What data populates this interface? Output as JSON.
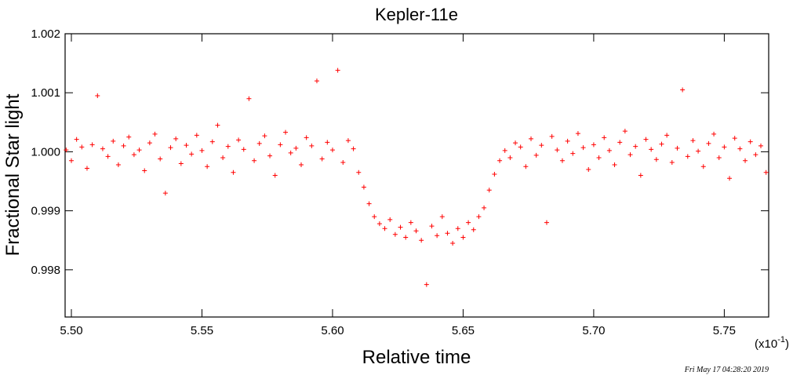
{
  "chart_data": {
    "type": "scatter",
    "title": "Kepler-11e",
    "x_label": "Relative time",
    "y_label": "Fractional Star light",
    "x_multiplier": {
      "base": "(x10",
      "exponent": "-1",
      "close": ")"
    },
    "timestamp": "Fri May 17 04:28:20 2019",
    "marker": "+",
    "xlim": [
      5.4976,
      5.767
    ],
    "ylim": [
      0.9972,
      1.002
    ],
    "xticks": [
      {
        "value": 5.5,
        "label": "5.50"
      },
      {
        "value": 5.55,
        "label": "5.55"
      },
      {
        "value": 5.6,
        "label": "5.60"
      },
      {
        "value": 5.65,
        "label": "5.65"
      },
      {
        "value": 5.7,
        "label": "5.70"
      },
      {
        "value": 5.75,
        "label": "5.75"
      }
    ],
    "yticks": [
      0.998,
      0.999,
      {
        "value": 1.0,
        "label": "1.000"
      },
      1.001,
      1.002
    ],
    "series": [
      {
        "color": "#ff0000",
        "x": [
          5.498,
          5.5,
          5.502,
          5.504,
          5.506,
          5.508,
          5.51,
          5.512,
          5.514,
          5.516,
          5.518,
          5.52,
          5.522,
          5.524,
          5.526,
          5.528,
          5.53,
          5.532,
          5.534,
          5.536,
          5.538,
          5.54,
          5.542,
          5.544,
          5.546,
          5.548,
          5.55,
          5.552,
          5.554,
          5.556,
          5.558,
          5.56,
          5.562,
          5.564,
          5.566,
          5.568,
          5.57,
          5.572,
          5.574,
          5.576,
          5.578,
          5.58,
          5.582,
          5.584,
          5.586,
          5.588,
          5.59,
          5.592,
          5.594,
          5.596,
          5.598,
          5.6,
          5.602,
          5.604,
          5.606,
          5.608,
          5.61,
          5.612,
          5.614,
          5.616,
          5.618,
          5.62,
          5.622,
          5.624,
          5.626,
          5.628,
          5.63,
          5.632,
          5.634,
          5.636,
          5.638,
          5.64,
          5.642,
          5.644,
          5.646,
          5.648,
          5.65,
          5.652,
          5.654,
          5.656,
          5.658,
          5.66,
          5.662,
          5.664,
          5.666,
          5.668,
          5.67,
          5.672,
          5.674,
          5.676,
          5.678,
          5.68,
          5.682,
          5.684,
          5.686,
          5.688,
          5.69,
          5.692,
          5.694,
          5.696,
          5.698,
          5.7,
          5.702,
          5.704,
          5.706,
          5.708,
          5.71,
          5.712,
          5.714,
          5.716,
          5.718,
          5.72,
          5.722,
          5.724,
          5.726,
          5.728,
          5.73,
          5.732,
          5.734,
          5.736,
          5.738,
          5.74,
          5.742,
          5.744,
          5.746,
          5.748,
          5.75,
          5.752,
          5.754,
          5.756,
          5.758,
          5.76,
          5.762,
          5.764,
          5.766
        ],
        "values": [
          1.00003,
          0.99985,
          1.00021,
          1.00008,
          0.99972,
          1.00012,
          1.00095,
          1.00005,
          0.99992,
          1.00018,
          0.99978,
          1.0001,
          1.00025,
          0.99995,
          1.00003,
          0.99968,
          1.00015,
          1.0003,
          0.99988,
          0.9993,
          1.00007,
          1.00022,
          0.9998,
          1.00011,
          0.99996,
          1.00028,
          1.00002,
          0.99975,
          1.00017,
          1.00045,
          0.9999,
          1.00009,
          0.99965,
          1.0002,
          1.00004,
          1.0009,
          0.99985,
          1.00014,
          1.00027,
          0.99993,
          0.9996,
          1.00012,
          1.00033,
          0.99998,
          1.00006,
          0.99978,
          1.00024,
          1.0001,
          1.0012,
          0.99988,
          1.00016,
          1.00003,
          1.00138,
          0.99982,
          1.00019,
          1.00005,
          0.99965,
          0.9994,
          0.99912,
          0.9989,
          0.99878,
          0.9987,
          0.99885,
          0.9986,
          0.99872,
          0.99855,
          0.9988,
          0.99866,
          0.9985,
          0.99775,
          0.99874,
          0.99858,
          0.9989,
          0.99862,
          0.99845,
          0.9987,
          0.99855,
          0.9988,
          0.99868,
          0.9989,
          0.99905,
          0.99935,
          0.99962,
          0.99985,
          1.00002,
          0.9999,
          1.00015,
          1.00008,
          0.99975,
          1.00022,
          0.99994,
          1.00011,
          0.9988,
          1.00026,
          1.00003,
          0.99985,
          1.00018,
          0.99997,
          1.00031,
          1.00007,
          0.9997,
          1.00012,
          0.9999,
          1.00024,
          1.00002,
          0.99978,
          1.00016,
          1.00035,
          0.99995,
          1.00009,
          0.9996,
          1.00021,
          1.00004,
          0.99987,
          1.00013,
          1.00028,
          0.99982,
          1.00006,
          1.00105,
          0.99992,
          1.00019,
          1.00001,
          0.99975,
          1.00014,
          1.0003,
          0.9999,
          1.00008,
          0.99955,
          1.00023,
          1.00005,
          0.99985,
          1.00017,
          0.99995,
          1.0001,
          0.99965
        ]
      }
    ]
  }
}
